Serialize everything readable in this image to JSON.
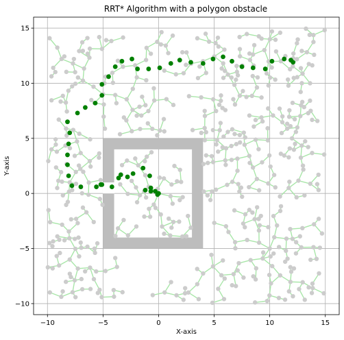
{
  "chart_data": {
    "type": "scatter",
    "title": "RRT* Algorithm with a polygon obstacle",
    "xlabel": "X-axis",
    "ylabel": "Y-axis",
    "xlim": [
      -11.25,
      16.25
    ],
    "ylim": [
      -11.0,
      16.0
    ],
    "xticks": [
      -10,
      -5,
      0,
      5,
      10,
      15
    ],
    "yticks": [
      -10,
      -5,
      0,
      5,
      10,
      15
    ],
    "xtick_labels": [
      "−10",
      "−5",
      "0",
      "5",
      "10",
      "15"
    ],
    "ytick_labels": [
      "−10",
      "−5",
      "0",
      "5",
      "10",
      "15"
    ],
    "grid": true,
    "colors": {
      "tree_node": "#cccccc",
      "tree_edge": "#a8e6a8",
      "path": "#008000",
      "obstacle": "#bdbdbd"
    },
    "obstacle": {
      "outer": [
        [
          -5,
          -5
        ],
        [
          4,
          -5
        ],
        [
          4,
          5
        ],
        [
          -5,
          5
        ]
      ],
      "inner": [
        [
          -4,
          -4
        ],
        [
          3,
          -4
        ],
        [
          3,
          4
        ],
        [
          -4,
          4
        ]
      ],
      "gap": {
        "x": [
          -5,
          -4
        ],
        "y": [
          0,
          1
        ]
      }
    },
    "path": [
      [
        -1.2,
        0.3
      ],
      [
        -0.7,
        0.2
      ],
      [
        -0.3,
        0.2
      ],
      [
        0,
        0
      ]
    ],
    "path_main": [
      [
        -5.1,
        0.8
      ],
      [
        -5.6,
        0.6
      ],
      [
        -7.0,
        0.6
      ],
      [
        -7.8,
        0.7
      ],
      [
        -8.1,
        1.6
      ],
      [
        -8.2,
        2.6
      ],
      [
        -8.2,
        3.5
      ],
      [
        -8.1,
        4.5
      ],
      [
        -8.0,
        5.5
      ],
      [
        -8.2,
        6.5
      ],
      [
        -7.3,
        7.3
      ],
      [
        -6.6,
        7.8
      ],
      [
        -5.7,
        8.2
      ],
      [
        -5.1,
        8.9
      ],
      [
        -5.1,
        9.9
      ],
      [
        -4.5,
        10.6
      ],
      [
        -3.9,
        11.5
      ],
      [
        -3.3,
        12.0
      ],
      [
        -2.4,
        12.2
      ],
      [
        -1.9,
        11.3
      ],
      [
        -0.9,
        11.3
      ],
      [
        0.1,
        11.4
      ],
      [
        1.1,
        11.8
      ],
      [
        1.9,
        12.1
      ],
      [
        2.9,
        11.9
      ],
      [
        4.0,
        11.8
      ],
      [
        4.9,
        12.2
      ],
      [
        5.8,
        12.4
      ],
      [
        6.6,
        12.0
      ],
      [
        7.5,
        11.5
      ],
      [
        8.5,
        11.4
      ],
      [
        9.6,
        11.3
      ],
      [
        10.2,
        12.0
      ],
      [
        11.3,
        12.2
      ],
      [
        11.9,
        12.1
      ],
      [
        12.1,
        11.9
      ]
    ],
    "path_inner": [
      [
        -5.2,
        0.8
      ],
      [
        -4.2,
        0.6
      ],
      [
        -3.6,
        1.4
      ],
      [
        -3.4,
        1.7
      ],
      [
        -2.8,
        1.5
      ],
      [
        -2.3,
        1.8
      ],
      [
        -1.4,
        2.3
      ],
      [
        -0.8,
        1.6
      ],
      [
        -0.7,
        0.5
      ],
      [
        -0.1,
        -0.1
      ]
    ]
  }
}
